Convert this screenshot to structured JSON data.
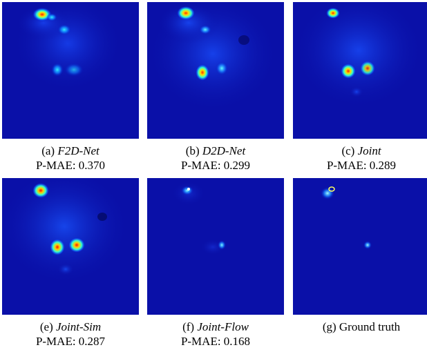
{
  "figure": {
    "panels": [
      {
        "id": "a",
        "prefix": "(a) ",
        "method": "F2D-Net",
        "italic": true,
        "metric_label": "P-MAE: 0.370"
      },
      {
        "id": "b",
        "prefix": "(b) ",
        "method": "D2D-Net",
        "italic": true,
        "metric_label": "P-MAE: 0.299"
      },
      {
        "id": "c",
        "prefix": "(c) ",
        "method": "Joint",
        "italic": true,
        "metric_label": "P-MAE: 0.289"
      },
      {
        "id": "e",
        "prefix": "(e) ",
        "method": "Joint-Sim",
        "italic": true,
        "metric_label": "P-MAE: 0.287"
      },
      {
        "id": "f",
        "prefix": "(f) ",
        "method": "Joint-Flow",
        "italic": true,
        "metric_label": "P-MAE: 0.168"
      },
      {
        "id": "g",
        "prefix": "(g) ",
        "method": "Ground truth",
        "italic": false,
        "metric_label": ""
      }
    ],
    "colormap": "jet",
    "background_color": "#0a10a8"
  }
}
